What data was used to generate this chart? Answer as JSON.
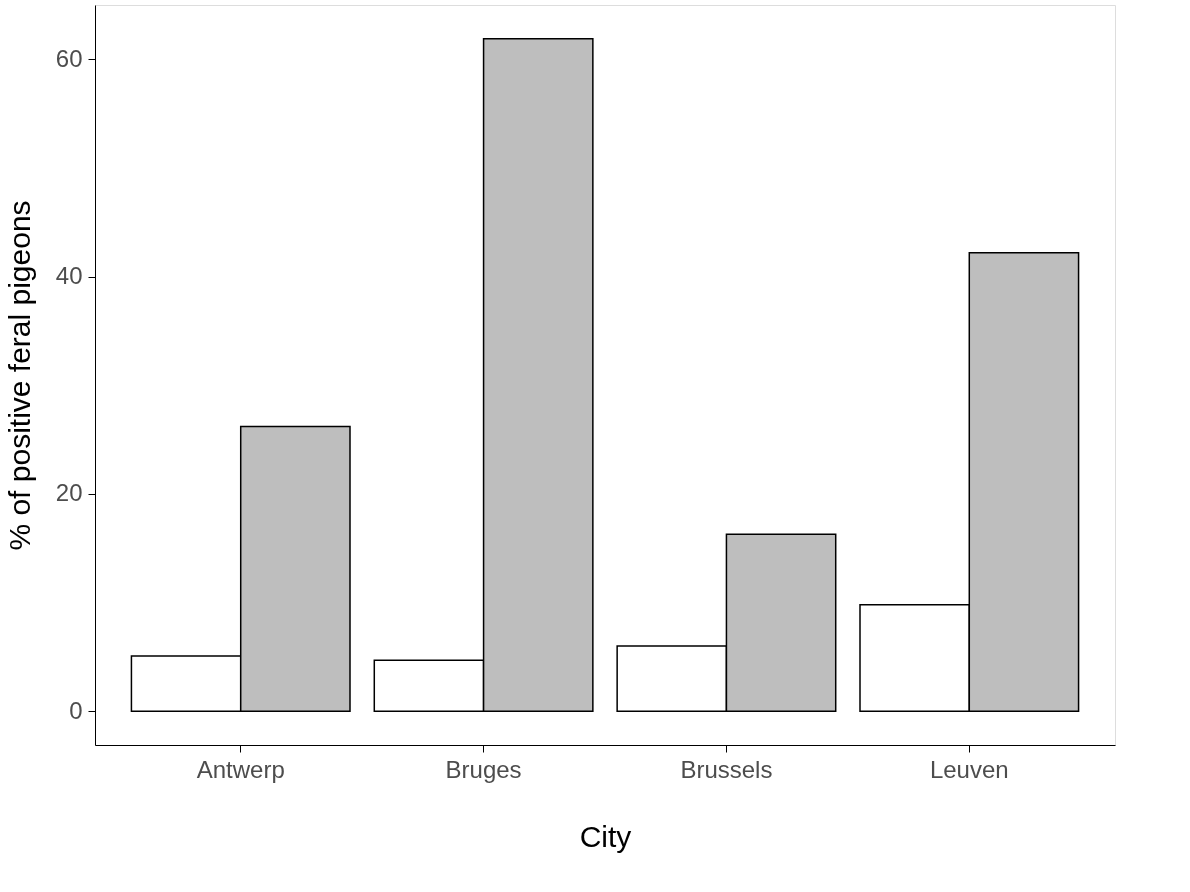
{
  "chart_data": {
    "type": "bar",
    "xlabel": "City",
    "ylabel": "% of positive feral pigeons",
    "categories": [
      "Antwerp",
      "Bruges",
      "Brussels",
      "Leuven"
    ],
    "series": [
      {
        "color": "#ffffff",
        "values": [
          5.1,
          4.7,
          6.0,
          9.8
        ]
      },
      {
        "color": "#bebebe",
        "values": [
          26.2,
          61.9,
          16.3,
          42.2
        ]
      }
    ],
    "ylim": [
      -3.1,
      65.0
    ],
    "yticks": [
      0,
      20,
      40,
      60
    ],
    "grid": false,
    "legend": false
  }
}
